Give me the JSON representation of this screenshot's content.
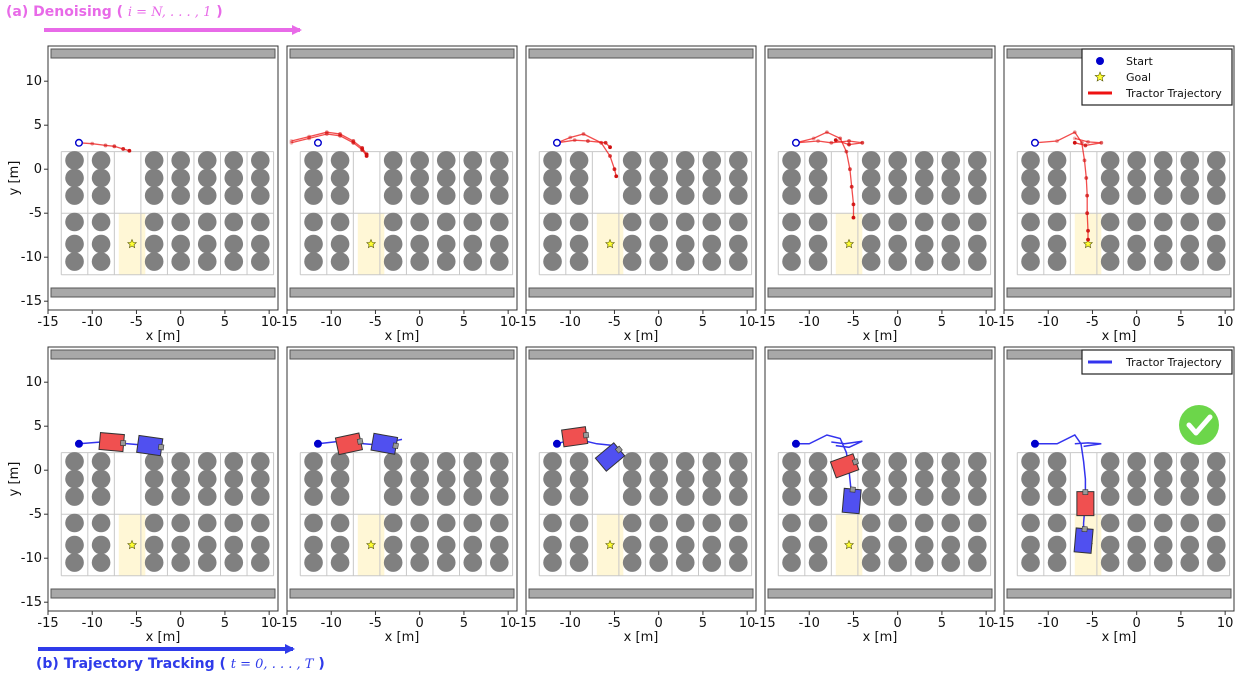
{
  "chart_data": {
    "type": "scatter",
    "xlabel": "x [m]",
    "ylabel": "y [m]",
    "xlim": [
      -15,
      11
    ],
    "ylim": [
      -16,
      14
    ],
    "xticks": [
      -15,
      -10,
      -5,
      0,
      5,
      10
    ],
    "yticks": [
      -15,
      -10,
      -5,
      0,
      5,
      10
    ],
    "grid": false,
    "start": [
      -11.5,
      3.0
    ],
    "goal": [
      -5.5,
      -8.5
    ],
    "goal_slot": {
      "x": [
        -7,
        -4
      ],
      "y": [
        -12,
        -5
      ]
    },
    "obstacles": {
      "columns_x": [
        -12,
        -9,
        -3,
        0,
        3,
        6,
        9
      ],
      "rows_y": [
        1,
        -1,
        -3,
        -6,
        -8.5,
        -10.5
      ]
    },
    "rows": [
      {
        "id": "denoising",
        "caption": "(a) Denoising (",
        "caption_math": "i = N, . . . , 1",
        "caption_end": ")",
        "legend": [
          {
            "label": "Start",
            "marker": "circle",
            "color": "#0000cc"
          },
          {
            "label": "Goal",
            "marker": "star",
            "color": "#ffff33"
          },
          {
            "label": "Tractor Trajectory",
            "marker": "line",
            "color": "#ee1111"
          }
        ],
        "legend_panel": 4,
        "panels": [
          {
            "series": [
              {
                "name": "",
                "points": [
                  [
                    -11.5,
                    3.0
                  ],
                  [
                    -10,
                    2.9
                  ],
                  [
                    -8.5,
                    2.7
                  ],
                  [
                    -7.5,
                    2.6
                  ],
                  [
                    -6.5,
                    2.3
                  ],
                  [
                    -5.8,
                    2.1
                  ]
                ]
              }
            ]
          },
          {
            "series": [
              {
                "name": "",
                "points": [
                  [
                    -14.5,
                    3.0
                  ],
                  [
                    -12.5,
                    3.5
                  ],
                  [
                    -10.5,
                    4.0
                  ],
                  [
                    -9.0,
                    3.8
                  ],
                  [
                    -7.5,
                    3.0
                  ],
                  [
                    -6.5,
                    2.2
                  ],
                  [
                    -6.0,
                    1.5
                  ]
                ]
              },
              {
                "name": "",
                "points": [
                  [
                    -14.5,
                    3.2
                  ],
                  [
                    -12.5,
                    3.7
                  ],
                  [
                    -10.5,
                    4.2
                  ],
                  [
                    -9.0,
                    4.0
                  ],
                  [
                    -7.5,
                    3.2
                  ],
                  [
                    -6.5,
                    2.4
                  ],
                  [
                    -6.0,
                    1.7
                  ]
                ]
              }
            ]
          },
          {
            "series": [
              {
                "name": "",
                "points": [
                  [
                    -11.5,
                    3.0
                  ],
                  [
                    -10.0,
                    3.6
                  ],
                  [
                    -8.5,
                    4.0
                  ],
                  [
                    -6.5,
                    3.0
                  ],
                  [
                    -5.5,
                    1.5
                  ],
                  [
                    -5.0,
                    0.0
                  ],
                  [
                    -4.8,
                    -0.8
                  ]
                ]
              },
              {
                "name": "",
                "points": [
                  [
                    -11.5,
                    3.0
                  ],
                  [
                    -9.5,
                    3.3
                  ],
                  [
                    -8.0,
                    3.2
                  ],
                  [
                    -6.0,
                    3.0
                  ],
                  [
                    -5.5,
                    2.5
                  ]
                ]
              }
            ]
          },
          {
            "series": [
              {
                "name": "",
                "points": [
                  [
                    -11.5,
                    3.0
                  ],
                  [
                    -9.5,
                    3.5
                  ],
                  [
                    -8.0,
                    4.2
                  ],
                  [
                    -6.5,
                    3.5
                  ],
                  [
                    -5.8,
                    2.0
                  ],
                  [
                    -5.4,
                    0.0
                  ],
                  [
                    -5.2,
                    -2.0
                  ],
                  [
                    -5.0,
                    -4.0
                  ],
                  [
                    -5.0,
                    -5.5
                  ]
                ]
              },
              {
                "name": "",
                "points": [
                  [
                    -11.5,
                    3.0
                  ],
                  [
                    -9.0,
                    3.2
                  ],
                  [
                    -7.5,
                    3.0
                  ],
                  [
                    -5.5,
                    3.2
                  ],
                  [
                    -4.0,
                    3.0
                  ],
                  [
                    -5.5,
                    2.8
                  ],
                  [
                    -7.0,
                    3.3
                  ]
                ]
              }
            ]
          },
          {
            "series": [
              {
                "name": "",
                "points": [
                  [
                    -11.5,
                    3.0
                  ],
                  [
                    -9.0,
                    3.2
                  ],
                  [
                    -7.0,
                    4.2
                  ],
                  [
                    -6.2,
                    3.0
                  ],
                  [
                    -5.9,
                    1.0
                  ],
                  [
                    -5.7,
                    -1.0
                  ],
                  [
                    -5.6,
                    -3.0
                  ],
                  [
                    -5.6,
                    -5.0
                  ],
                  [
                    -5.5,
                    -7.0
                  ],
                  [
                    -5.5,
                    -8.0
                  ]
                ]
              },
              {
                "name": "",
                "points": [
                  [
                    -7.0,
                    3.5
                  ],
                  [
                    -5.5,
                    3.1
                  ],
                  [
                    -4.0,
                    3.0
                  ],
                  [
                    -5.8,
                    2.7
                  ],
                  [
                    -7.0,
                    3.0
                  ]
                ]
              }
            ]
          }
        ]
      },
      {
        "id": "tracking",
        "caption": "(b) Trajectory Tracking (",
        "caption_math": "t = 0, . . . , T",
        "caption_end": ")",
        "legend": [
          {
            "label": "Tractor Trajectory",
            "marker": "line",
            "color": "#3333ee"
          }
        ],
        "legend_panel": 4,
        "success_panel": 4,
        "panels": [
          {
            "series": [
              {
                "name": "",
                "points": [
                  [
                    -11.5,
                    3.0
                  ],
                  [
                    -9.0,
                    3.2
                  ],
                  [
                    -6.0,
                    3.0
                  ],
                  [
                    -3.5,
                    2.8
                  ],
                  [
                    -2.0,
                    2.5
                  ]
                ]
              }
            ],
            "tractor": {
              "center": [
                -7.8,
                3.2
              ],
              "angle_deg": -5
            },
            "trailer": {
              "center": [
                -3.5,
                2.8
              ],
              "angle_deg": -8
            }
          },
          {
            "series": [
              {
                "name": "",
                "points": [
                  [
                    -11.5,
                    3.0
                  ],
                  [
                    -9.0,
                    3.3
                  ],
                  [
                    -7.5,
                    3.1
                  ],
                  [
                    -5.0,
                    2.9
                  ],
                  [
                    -2.0,
                    3.5
                  ]
                ]
              }
            ],
            "tractor": {
              "center": [
                -8.0,
                3.0
              ],
              "angle_deg": 12
            },
            "trailer": {
              "center": [
                -4.0,
                3.0
              ],
              "angle_deg": -10
            }
          },
          {
            "series": [
              {
                "name": "",
                "points": [
                  [
                    -11.5,
                    3.0
                  ],
                  [
                    -9.5,
                    3.6
                  ],
                  [
                    -7.0,
                    3.0
                  ],
                  [
                    -5.0,
                    2.8
                  ],
                  [
                    -4.5,
                    2.0
                  ]
                ]
              }
            ],
            "tractor": {
              "center": [
                -9.5,
                3.8
              ],
              "angle_deg": 8
            },
            "trailer": {
              "center": [
                -5.5,
                1.5
              ],
              "angle_deg": 40
            }
          },
          {
            "series": [
              {
                "name": "",
                "points": [
                  [
                    -11.5,
                    3.0
                  ],
                  [
                    -10.0,
                    3.0
                  ],
                  [
                    -8.0,
                    4.0
                  ],
                  [
                    -6.5,
                    3.6
                  ],
                  [
                    -5.8,
                    2.0
                  ],
                  [
                    -5.5,
                    0.0
                  ],
                  [
                    -5.3,
                    -2.0
                  ],
                  [
                    -5.2,
                    -4.5
                  ]
                ]
              },
              {
                "name": "",
                "points": [
                  [
                    -7.5,
                    3.2
                  ],
                  [
                    -6.0,
                    3.0
                  ],
                  [
                    -4.0,
                    3.3
                  ],
                  [
                    -5.5,
                    2.6
                  ],
                  [
                    -7.0,
                    2.8
                  ]
                ]
              }
            ],
            "tractor": {
              "center": [
                -6.0,
                0.5
              ],
              "angle_deg": 20
            },
            "trailer": {
              "center": [
                -5.2,
                -3.5
              ],
              "angle_deg": 85
            }
          },
          {
            "series": [
              {
                "name": "",
                "points": [
                  [
                    -11.5,
                    3.0
                  ],
                  [
                    -9.0,
                    3.0
                  ],
                  [
                    -7.0,
                    4.0
                  ],
                  [
                    -6.3,
                    3.0
                  ],
                  [
                    -6.0,
                    1.0
                  ],
                  [
                    -5.8,
                    -1.0
                  ],
                  [
                    -5.8,
                    -3.5
                  ],
                  [
                    -6.0,
                    -6.0
                  ],
                  [
                    -6.0,
                    -8.0
                  ]
                ]
              },
              {
                "name": "",
                "points": [
                  [
                    -7.0,
                    3.0
                  ],
                  [
                    -5.5,
                    3.1
                  ],
                  [
                    -4.0,
                    3.0
                  ],
                  [
                    -6.0,
                    2.7
                  ]
                ]
              }
            ],
            "tractor": {
              "center": [
                -5.8,
                -3.8
              ],
              "angle_deg": 90
            },
            "trailer": {
              "center": [
                -6.0,
                -8.0
              ],
              "angle_deg": 85
            }
          }
        ]
      }
    ]
  }
}
